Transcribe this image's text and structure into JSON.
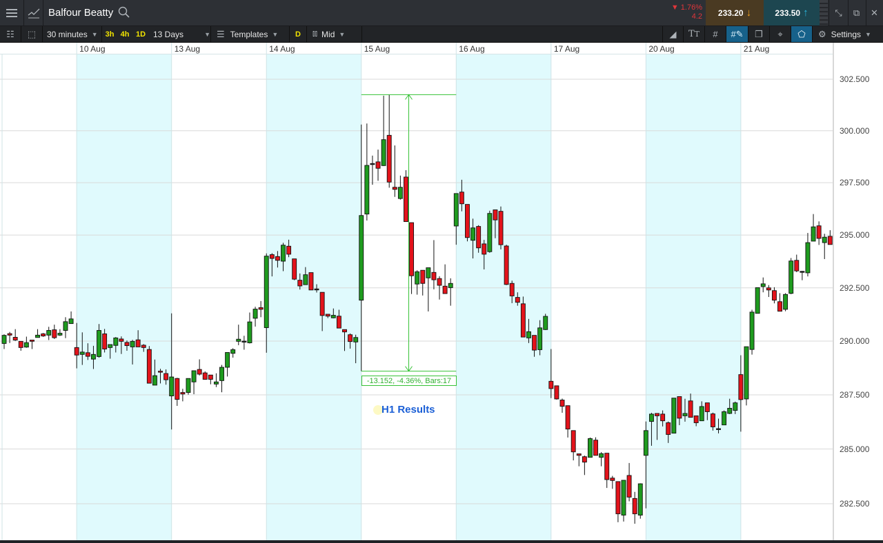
{
  "header": {
    "instrument": "Balfour Beatty",
    "change_pct": "▼ 1.76%",
    "change_abs": "4.2",
    "sell_price": "233.20",
    "buy_price": "233.50",
    "icons": [
      "menu-icon",
      "chart-type-icon",
      "search-icon",
      "collapse-icon",
      "popout-icon",
      "close-icon"
    ]
  },
  "toolbar": {
    "interval": "30 minutes",
    "quick_3h": "3h",
    "quick_4h": "4h",
    "quick_1d": "1D",
    "range": "13 Days",
    "templates": "Templates",
    "d_label": "D",
    "price_type": "Mid",
    "settings": "Settings"
  },
  "colors": {
    "up": "#1f9b1f",
    "down": "#e3131b",
    "measure": "#35c135",
    "event": "#1b5fd6",
    "band": "#e0fafd"
  },
  "chart_data": {
    "type": "candlestick",
    "scale": "log",
    "ylim": [
      282.5,
      302.5
    ],
    "y_ticks": [
      "302.500",
      "300.000",
      "297.500",
      "295.000",
      "292.500",
      "290.000",
      "287.500",
      "285.000",
      "282.500"
    ],
    "x_ticks": [
      "10 Aug",
      "13 Aug",
      "14 Aug",
      "15 Aug",
      "16 Aug",
      "17 Aug",
      "20 Aug",
      "21 Aug"
    ],
    "x_tick_bar_index": [
      13,
      30,
      47,
      64,
      81,
      98,
      115,
      132
    ],
    "grid": true,
    "ohlc_fields": [
      "open",
      "high",
      "low",
      "close"
    ],
    "ohlc": [
      [
        289.89,
        290.32,
        289.63,
        290.27
      ],
      [
        290.35,
        290.43,
        289.91,
        290.28
      ],
      [
        290.18,
        290.56,
        290.01,
        290.05
      ],
      [
        289.99,
        289.99,
        289.55,
        289.7
      ],
      [
        289.72,
        290.21,
        289.69,
        289.93
      ],
      [
        290.05,
        290.05,
        289.63,
        289.99
      ],
      [
        290.17,
        290.56,
        290.17,
        290.28
      ],
      [
        290.34,
        290.38,
        290.2,
        290.24
      ],
      [
        290.28,
        290.67,
        290.05,
        290.5
      ],
      [
        290.53,
        290.77,
        290.1,
        290.16
      ],
      [
        290.28,
        290.56,
        290.24,
        290.37
      ],
      [
        290.5,
        291.12,
        290.14,
        290.91
      ],
      [
        290.82,
        291.39,
        290.82,
        291.04
      ],
      [
        289.7,
        290.85,
        288.73,
        289.35
      ],
      [
        289.38,
        290.41,
        288.89,
        289.49
      ],
      [
        289.46,
        289.9,
        289.12,
        289.29
      ],
      [
        289.16,
        289.78,
        288.7,
        289.38
      ],
      [
        289.28,
        290.8,
        289.23,
        290.5
      ],
      [
        290.34,
        290.57,
        289.47,
        289.63
      ],
      [
        289.7,
        289.84,
        289.18,
        289.84
      ],
      [
        289.8,
        290.19,
        289.47,
        290.15
      ],
      [
        290.1,
        290.22,
        289.4,
        289.99
      ],
      [
        289.94,
        290.03,
        289.55,
        289.79
      ],
      [
        289.73,
        290.06,
        288.91,
        289.99
      ],
      [
        290.06,
        290.51,
        289.73,
        289.73
      ],
      [
        289.81,
        289.86,
        289.5,
        289.7
      ],
      [
        289.61,
        289.77,
        288.04,
        288.04
      ],
      [
        287.95,
        289.14,
        287.95,
        288.39
      ],
      [
        288.6,
        288.71,
        288.03,
        288.55
      ],
      [
        288.49,
        288.68,
        287.97,
        288.2
      ],
      [
        287.45,
        291.3,
        285.9,
        288.33
      ],
      [
        288.26,
        288.29,
        286.99,
        287.29
      ],
      [
        287.61,
        287.78,
        287.2,
        287.54
      ],
      [
        287.61,
        288.26,
        287.51,
        288.26
      ],
      [
        288.1,
        288.62,
        287.53,
        288.62
      ],
      [
        288.68,
        289.15,
        288.4,
        288.46
      ],
      [
        288.52,
        288.59,
        288.2,
        288.22
      ],
      [
        288.42,
        288.42,
        287.99,
        288.22
      ],
      [
        288.0,
        288.5,
        287.86,
        288.1
      ],
      [
        288.16,
        288.89,
        287.62,
        288.78
      ],
      [
        288.78,
        289.47,
        288.35,
        289.47
      ],
      [
        289.43,
        289.67,
        289.23,
        289.6
      ],
      [
        289.99,
        290.77,
        289.81,
        290.09
      ],
      [
        290.0,
        290.25,
        289.6,
        290.0
      ],
      [
        289.92,
        291.34,
        289.89,
        290.9
      ],
      [
        291.07,
        291.61,
        290.68,
        291.5
      ],
      [
        291.57,
        291.88,
        291.12,
        291.49
      ],
      [
        290.63,
        294.13,
        289.46,
        294.0
      ],
      [
        294.07,
        294.14,
        293.04,
        293.89
      ],
      [
        293.98,
        294.24,
        293.46,
        293.8
      ],
      [
        293.76,
        294.63,
        293.29,
        294.52
      ],
      [
        294.47,
        294.78,
        293.95,
        294.09
      ],
      [
        293.87,
        293.87,
        292.86,
        292.91
      ],
      [
        292.86,
        293.18,
        292.42,
        292.59
      ],
      [
        292.65,
        293.48,
        292.65,
        293.12
      ],
      [
        293.22,
        293.22,
        292.4,
        292.4
      ],
      [
        292.45,
        292.67,
        292.28,
        292.45
      ],
      [
        292.29,
        292.29,
        290.47,
        291.2
      ],
      [
        291.26,
        291.26,
        291.08,
        291.17
      ],
      [
        291.09,
        291.53,
        291.07,
        291.21
      ],
      [
        291.17,
        291.47,
        290.61,
        290.61
      ],
      [
        290.54,
        290.54,
        289.54,
        290.43
      ],
      [
        290.3,
        290.36,
        289.65,
        289.98
      ],
      [
        289.96,
        290.3,
        288.97,
        290.17
      ],
      [
        291.92,
        300.3,
        288.6,
        295.93
      ],
      [
        296.0,
        300.35,
        295.69,
        298.33
      ],
      [
        298.42,
        298.8,
        297.4,
        298.42
      ],
      [
        298.5,
        299.09,
        297.59,
        298.19
      ],
      [
        298.32,
        301.7,
        298.3,
        299.57
      ],
      [
        299.78,
        301.75,
        297.26,
        297.53
      ],
      [
        297.28,
        299.29,
        296.82,
        297.18
      ],
      [
        296.74,
        297.84,
        296.69,
        297.28
      ],
      [
        297.77,
        298.1,
        295.64,
        295.64
      ],
      [
        295.59,
        295.59,
        292.21,
        293.07
      ],
      [
        292.68,
        293.33,
        292.18,
        293.26
      ],
      [
        293.33,
        293.33,
        292.14,
        292.71
      ],
      [
        292.97,
        293.45,
        291.39,
        293.45
      ],
      [
        293.23,
        294.76,
        292.43,
        292.88
      ],
      [
        292.94,
        293.05,
        291.95,
        292.62
      ],
      [
        292.58,
        293.61,
        292.23,
        292.23
      ],
      [
        292.51,
        292.95,
        291.66,
        292.71
      ],
      [
        295.43,
        296.98,
        294.54,
        296.98
      ],
      [
        297.05,
        297.64,
        296.13,
        296.49
      ],
      [
        296.46,
        296.46,
        294.7,
        294.88
      ],
      [
        294.75,
        295.78,
        293.89,
        295.34
      ],
      [
        295.41,
        295.47,
        294.16,
        294.39
      ],
      [
        294.58,
        294.77,
        293.37,
        294.09
      ],
      [
        294.21,
        296.16,
        294.16,
        296.03
      ],
      [
        296.2,
        296.2,
        294.85,
        295.72
      ],
      [
        296.13,
        296.36,
        294.32,
        294.54
      ],
      [
        294.48,
        294.54,
        292.63,
        292.66
      ],
      [
        292.71,
        292.84,
        291.78,
        292.12
      ],
      [
        292.05,
        292.29,
        291.66,
        291.82
      ],
      [
        291.75,
        292.09,
        290.19,
        290.19
      ],
      [
        290.15,
        291.04,
        289.91,
        290.44
      ],
      [
        290.27,
        290.27,
        289.27,
        289.58
      ],
      [
        289.6,
        290.98,
        289.34,
        290.62
      ],
      [
        290.54,
        291.28,
        290.52,
        291.16
      ],
      [
        288.13,
        289.63,
        287.35,
        287.79
      ],
      [
        287.92,
        287.92,
        287.28,
        287.31
      ],
      [
        287.26,
        287.33,
        286.67,
        286.97
      ],
      [
        287.0,
        287.0,
        285.53,
        285.92
      ],
      [
        285.85,
        285.85,
        284.48,
        284.87
      ],
      [
        284.78,
        284.78,
        284.21,
        284.71
      ],
      [
        284.65,
        284.7,
        283.81,
        284.4
      ],
      [
        284.62,
        285.53,
        284.62,
        285.48
      ],
      [
        285.41,
        285.54,
        284.71,
        284.71
      ],
      [
        284.62,
        284.86,
        284.21,
        284.79
      ],
      [
        284.81,
        284.81,
        283.22,
        283.6
      ],
      [
        283.67,
        283.77,
        283.18,
        283.56
      ],
      [
        283.51,
        283.51,
        281.66,
        282.04
      ],
      [
        281.98,
        283.57,
        281.69,
        283.57
      ],
      [
        283.79,
        284.36,
        282.61,
        282.8
      ],
      [
        282.74,
        283.04,
        281.59,
        282.04
      ],
      [
        281.98,
        283.43,
        281.82,
        283.41
      ],
      [
        284.71,
        286.27,
        282.29,
        285.85
      ],
      [
        286.27,
        286.67,
        285.15,
        286.61
      ],
      [
        286.64,
        286.64,
        285.42,
        286.53
      ],
      [
        286.61,
        286.78,
        286.04,
        286.3
      ],
      [
        286.21,
        286.27,
        285.28,
        285.67
      ],
      [
        285.73,
        287.35,
        285.73,
        287.35
      ],
      [
        287.42,
        287.42,
        286.1,
        286.42
      ],
      [
        286.53,
        287.32,
        286.26,
        286.64
      ],
      [
        287.22,
        287.56,
        286.46,
        286.46
      ],
      [
        286.53,
        286.53,
        286.05,
        286.21
      ],
      [
        286.3,
        287.2,
        286.3,
        286.96
      ],
      [
        287.13,
        287.13,
        286.33,
        286.72
      ],
      [
        286.62,
        286.68,
        285.85,
        286.02
      ],
      [
        285.94,
        286.4,
        285.72,
        285.94
      ],
      [
        286.11,
        286.78,
        286.11,
        286.72
      ],
      [
        286.64,
        287.32,
        286.61,
        286.88
      ],
      [
        286.78,
        287.19,
        286.61,
        287.13
      ],
      [
        288.44,
        289.34,
        285.8,
        287.28
      ],
      [
        287.31,
        289.74,
        287.01,
        289.74
      ],
      [
        289.61,
        291.47,
        289.37,
        291.36
      ],
      [
        291.3,
        292.51,
        291.3,
        292.51
      ],
      [
        292.56,
        292.99,
        292.29,
        292.69
      ],
      [
        292.5,
        292.63,
        292.07,
        292.4
      ],
      [
        292.37,
        292.53,
        291.77,
        291.92
      ],
      [
        291.85,
        292.25,
        291.4,
        291.4
      ],
      [
        291.49,
        292.25,
        291.4,
        292.19
      ],
      [
        292.24,
        293.91,
        292.2,
        293.77
      ],
      [
        293.8,
        294.07,
        293.24,
        293.3
      ],
      [
        293.28,
        293.3,
        292.86,
        293.28
      ],
      [
        293.21,
        295.1,
        293.04,
        294.64
      ],
      [
        294.71,
        296.0,
        294.71,
        295.39
      ],
      [
        295.44,
        295.65,
        294.53,
        294.84
      ],
      [
        294.64,
        295.06,
        293.86,
        294.9
      ],
      [
        294.94,
        295.23,
        294.55,
        294.55
      ]
    ],
    "measure": {
      "from_bar": 64,
      "to_bar": 81,
      "high": 301.75,
      "low": 288.6,
      "text": "-13.152, -4.36%, Bars:17"
    },
    "event": {
      "text": "H1 Results"
    }
  }
}
